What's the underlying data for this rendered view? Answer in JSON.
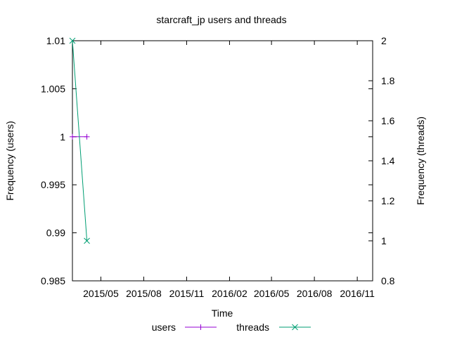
{
  "chart_data": {
    "type": "line",
    "title": "starcraft_jp users and threads",
    "xlabel": "Time",
    "ylabel": "Frequency (users)",
    "y2label": "Frequency (threads)",
    "x_ticks": [
      "2015/05",
      "2015/08",
      "2015/11",
      "2016/02",
      "2016/05",
      "2016/08",
      "2016/11"
    ],
    "xlim": [
      "2015-03-01",
      "2016-12-04"
    ],
    "y_ticks": [
      "0.985",
      "0.99",
      "0.995",
      "1",
      "1.005",
      "1.01"
    ],
    "ylim": [
      0.985,
      1.01
    ],
    "y2_ticks": [
      "0.8",
      "1",
      "1.2",
      "1.4",
      "1.6",
      "1.8",
      "2"
    ],
    "y2lim": [
      0.8,
      2.0
    ],
    "grid": false,
    "legend_position": "bottom",
    "series": [
      {
        "name": "users",
        "axis": "left",
        "color": "#9400d3",
        "marker": "plus",
        "points": [
          [
            "2015-03-01",
            1
          ],
          [
            "2015-04-01",
            1
          ]
        ]
      },
      {
        "name": "threads",
        "axis": "right",
        "color": "#009e73",
        "marker": "cross",
        "points": [
          [
            "2015-03-01",
            2
          ],
          [
            "2015-04-01",
            1
          ]
        ]
      }
    ]
  }
}
